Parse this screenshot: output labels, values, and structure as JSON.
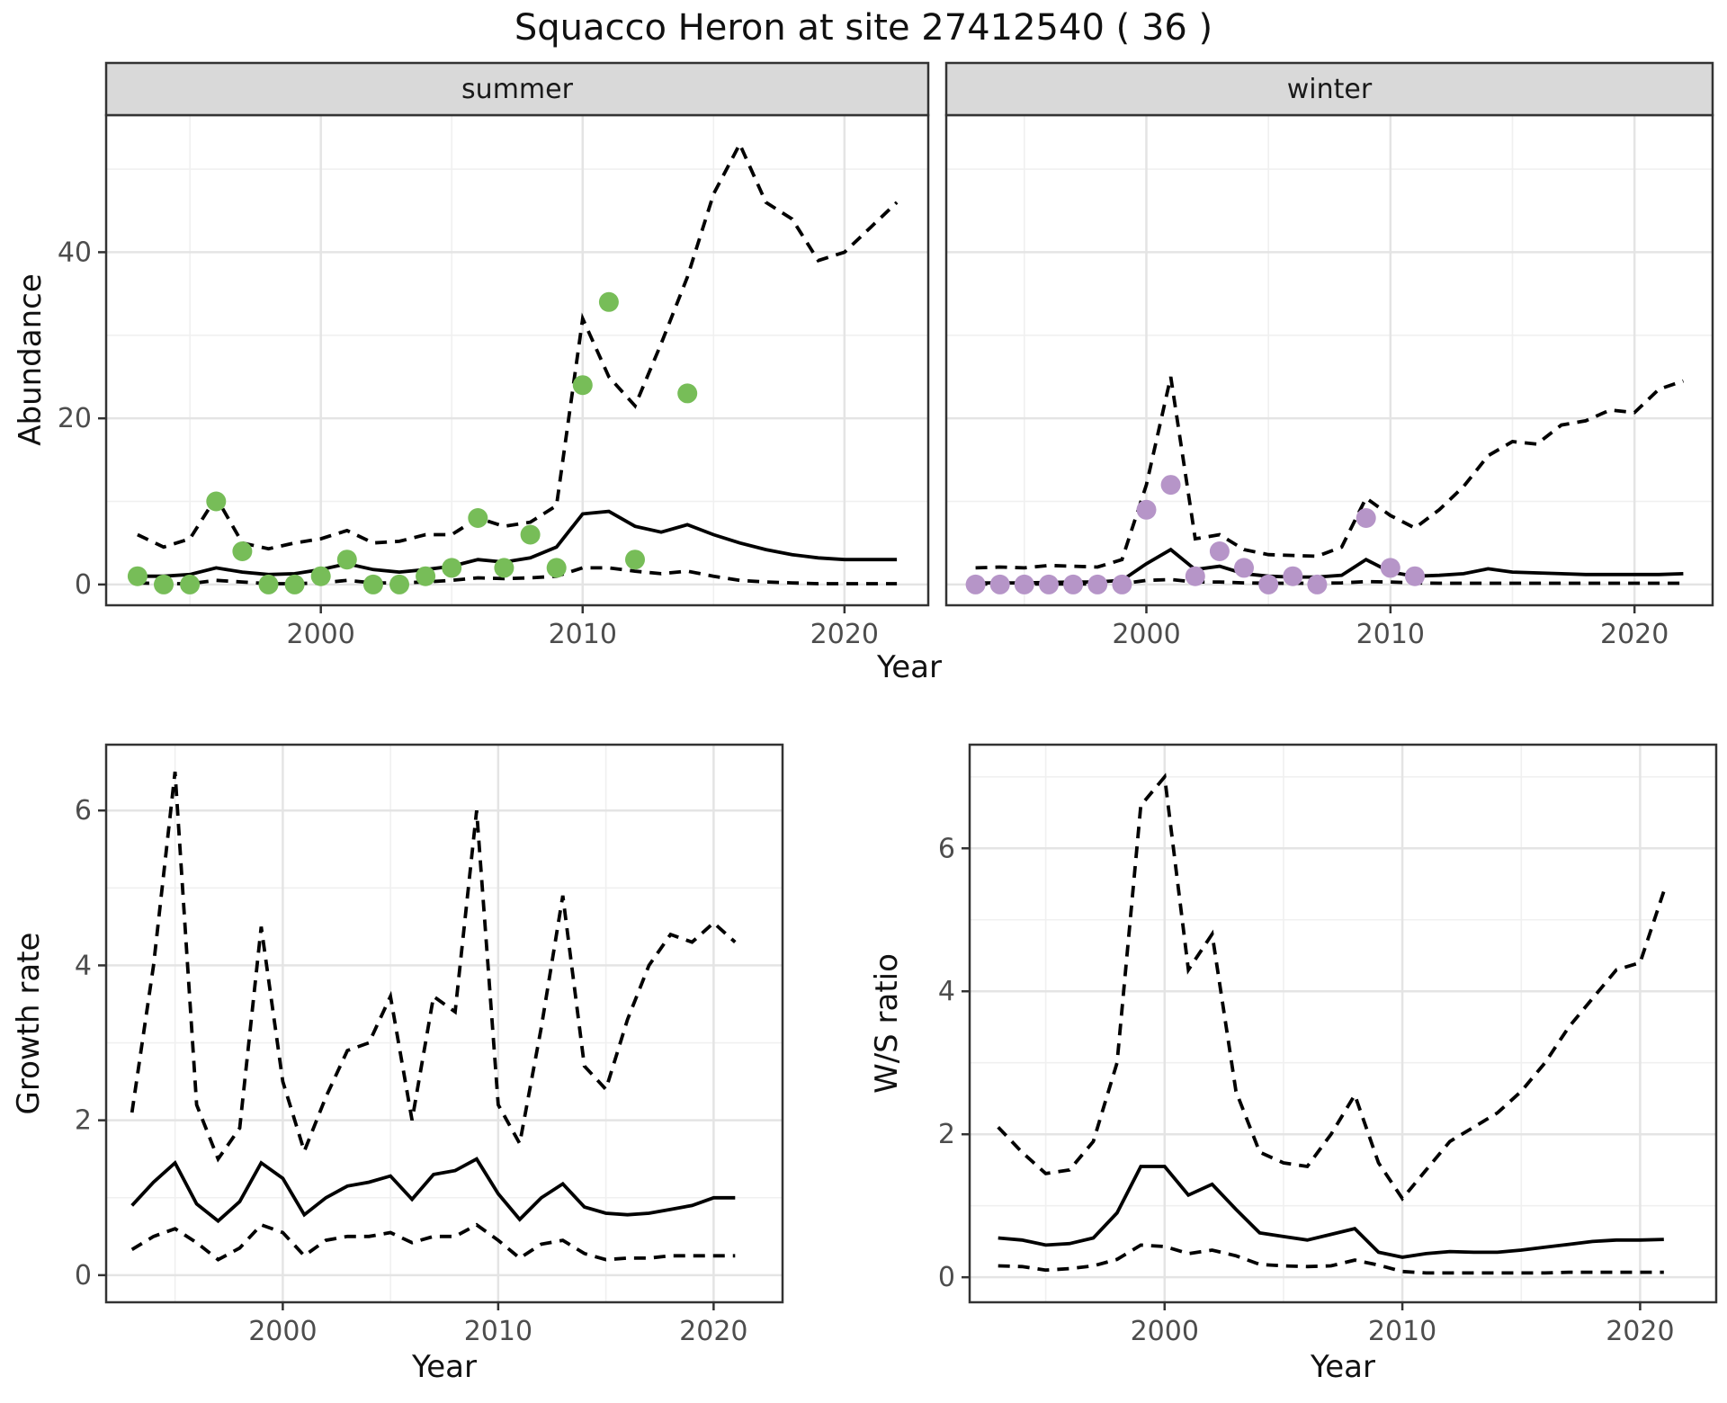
{
  "title": "Squacco Heron at site 27412540 ( 36 )",
  "colors": {
    "summer_point": "#77bd58",
    "winter_point": "#b695c8",
    "line": "#000000",
    "panel_bg": "#ffffff",
    "grid_major": "#e4e4e4",
    "grid_minor": "#f0f0f0",
    "panel_border": "#333333",
    "strip_bg": "#d9d9d9",
    "strip_text": "#1a1a1a",
    "tick_text": "#4d4d4d"
  },
  "chart_data": [
    {
      "id": "abundance_summer",
      "type": "line",
      "facet_label": "summer",
      "ylabel": "Abundance",
      "xlabel": "Year",
      "xlim": [
        1991.8,
        2023.2
      ],
      "ylim": [
        -2.5,
        56.5
      ],
      "xticks": [
        2000,
        2010,
        2020
      ],
      "yticks": [
        0,
        20,
        40
      ],
      "grid": true,
      "x": [
        1993,
        1994,
        1995,
        1996,
        1997,
        1998,
        1999,
        2000,
        2001,
        2002,
        2003,
        2004,
        2005,
        2006,
        2007,
        2008,
        2009,
        2010,
        2011,
        2012,
        2013,
        2014,
        2015,
        2016,
        2017,
        2018,
        2019,
        2020,
        2021,
        2022
      ],
      "series": [
        {
          "name": "median",
          "style": "solid",
          "values": [
            1.0,
            1.0,
            1.2,
            2.0,
            1.5,
            1.2,
            1.3,
            1.8,
            2.5,
            1.8,
            1.5,
            1.8,
            2.2,
            3.0,
            2.7,
            3.2,
            4.5,
            8.5,
            8.8,
            7.0,
            6.3,
            7.2,
            6.0,
            5.0,
            4.2,
            3.6,
            3.2,
            3.0,
            3.0,
            3.0
          ]
        },
        {
          "name": "upper_ci",
          "style": "dashed",
          "values": [
            6.0,
            4.5,
            5.5,
            10.5,
            5.0,
            4.3,
            5.0,
            5.5,
            6.5,
            5.0,
            5.2,
            6.0,
            6.0,
            8.0,
            7.0,
            7.5,
            9.5,
            32.0,
            25.0,
            21.5,
            29.0,
            37.0,
            47.0,
            53.0,
            46.0,
            44.0,
            39.0,
            40.0,
            43.0,
            46.0
          ]
        },
        {
          "name": "lower_ci",
          "style": "dashed",
          "values": [
            0.2,
            0.1,
            0.1,
            0.5,
            0.3,
            0.1,
            0.1,
            0.2,
            0.5,
            0.2,
            0.2,
            0.3,
            0.5,
            0.8,
            0.7,
            0.8,
            1.0,
            2.0,
            2.0,
            1.6,
            1.3,
            1.6,
            1.0,
            0.5,
            0.3,
            0.2,
            0.1,
            0.1,
            0.1,
            0.1
          ]
        }
      ],
      "points": {
        "name": "observed",
        "color_key": "summer_point",
        "x": [
          1993,
          1994,
          1995,
          1996,
          1997,
          1998,
          1999,
          2000,
          2001,
          2002,
          2003,
          2004,
          2005,
          2006,
          2007,
          2008,
          2009,
          2010,
          2011,
          2012,
          2014
        ],
        "y": [
          1,
          0,
          0,
          10,
          4,
          0,
          0,
          1,
          3,
          0,
          0,
          1,
          2,
          8,
          2,
          6,
          2,
          24,
          34,
          3,
          23
        ]
      }
    },
    {
      "id": "abundance_winter",
      "type": "line",
      "facet_label": "winter",
      "ylabel": "Abundance",
      "xlabel": "Year",
      "xlim": [
        1991.8,
        2023.2
      ],
      "ylim": [
        -2.5,
        56.5
      ],
      "xticks": [
        2000,
        2010,
        2020
      ],
      "yticks": [
        0,
        20,
        40
      ],
      "grid": true,
      "x": [
        1993,
        1994,
        1995,
        1996,
        1997,
        1998,
        1999,
        2000,
        2001,
        2002,
        2003,
        2004,
        2005,
        2006,
        2007,
        2008,
        2009,
        2010,
        2011,
        2012,
        2013,
        2014,
        2015,
        2016,
        2017,
        2018,
        2019,
        2020,
        2021,
        2022
      ],
      "series": [
        {
          "name": "median",
          "style": "solid",
          "values": [
            0.2,
            0.2,
            0.2,
            0.25,
            0.3,
            0.3,
            0.5,
            2.5,
            4.2,
            1.8,
            2.2,
            1.3,
            1.0,
            0.9,
            0.9,
            1.1,
            3.0,
            1.5,
            1.0,
            1.1,
            1.3,
            1.9,
            1.5,
            1.4,
            1.3,
            1.2,
            1.2,
            1.2,
            1.2,
            1.3
          ]
        },
        {
          "name": "upper_ci",
          "style": "dashed",
          "values": [
            2.0,
            2.1,
            2.0,
            2.3,
            2.2,
            2.1,
            3.0,
            12.0,
            25.0,
            5.5,
            6.0,
            4.2,
            3.6,
            3.5,
            3.4,
            4.5,
            10.4,
            8.3,
            6.8,
            9.0,
            11.8,
            15.5,
            17.2,
            16.9,
            19.2,
            19.7,
            21.0,
            20.7,
            23.5,
            24.5
          ]
        },
        {
          "name": "lower_ci",
          "style": "dashed",
          "values": [
            0.05,
            0.05,
            0.05,
            0.05,
            0.05,
            0.05,
            0.1,
            0.5,
            0.6,
            0.3,
            0.3,
            0.2,
            0.15,
            0.15,
            0.15,
            0.2,
            0.35,
            0.3,
            0.2,
            0.15,
            0.15,
            0.15,
            0.15,
            0.15,
            0.15,
            0.15,
            0.15,
            0.15,
            0.15,
            0.15
          ]
        }
      ],
      "points": {
        "name": "observed",
        "color_key": "winter_point",
        "x": [
          1993,
          1994,
          1995,
          1996,
          1997,
          1998,
          1999,
          2000,
          2001,
          2002,
          2003,
          2004,
          2005,
          2006,
          2007,
          2009,
          2010,
          2011
        ],
        "y": [
          0,
          0,
          0,
          0,
          0,
          0,
          0,
          9,
          12,
          1,
          4,
          2,
          0,
          1,
          0,
          8,
          2,
          1
        ]
      }
    },
    {
      "id": "growth_rate",
      "type": "line",
      "facet_label": null,
      "ylabel": "Growth rate",
      "xlabel": "Year",
      "xlim": [
        1991.8,
        2023.2
      ],
      "ylim": [
        -0.35,
        6.85
      ],
      "xticks": [
        2000,
        2010,
        2020
      ],
      "yticks": [
        0,
        2,
        4,
        6
      ],
      "grid": true,
      "x": [
        1993,
        1994,
        1995,
        1996,
        1997,
        1998,
        1999,
        2000,
        2001,
        2002,
        2003,
        2004,
        2005,
        2006,
        2007,
        2008,
        2009,
        2010,
        2011,
        2012,
        2013,
        2014,
        2015,
        2016,
        2017,
        2018,
        2019,
        2020,
        2021
      ],
      "series": [
        {
          "name": "median",
          "style": "solid",
          "values": [
            0.9,
            1.2,
            1.45,
            0.92,
            0.7,
            0.95,
            1.45,
            1.25,
            0.78,
            1.0,
            1.15,
            1.2,
            1.28,
            0.98,
            1.3,
            1.35,
            1.5,
            1.05,
            0.72,
            1.0,
            1.18,
            0.88,
            0.8,
            0.78,
            0.8,
            0.85,
            0.9,
            1.0,
            1.0
          ]
        },
        {
          "name": "upper_ci",
          "style": "dashed",
          "values": [
            2.1,
            4.0,
            6.5,
            2.2,
            1.5,
            1.9,
            4.5,
            2.5,
            1.6,
            2.3,
            2.9,
            3.0,
            3.6,
            2.0,
            3.6,
            3.4,
            6.0,
            2.2,
            1.7,
            3.2,
            4.9,
            2.7,
            2.4,
            3.3,
            4.0,
            4.4,
            4.3,
            4.55,
            4.3
          ]
        },
        {
          "name": "lower_ci",
          "style": "dashed",
          "values": [
            0.33,
            0.5,
            0.6,
            0.42,
            0.2,
            0.35,
            0.65,
            0.55,
            0.25,
            0.45,
            0.5,
            0.5,
            0.55,
            0.42,
            0.5,
            0.5,
            0.65,
            0.45,
            0.22,
            0.4,
            0.45,
            0.28,
            0.2,
            0.22,
            0.22,
            0.25,
            0.25,
            0.25,
            0.25
          ]
        }
      ],
      "points": null
    },
    {
      "id": "ws_ratio",
      "type": "line",
      "facet_label": null,
      "ylabel": "W/S ratio",
      "xlabel": "Year",
      "xlim": [
        1991.8,
        2023.2
      ],
      "ylim": [
        -0.35,
        7.45
      ],
      "xticks": [
        2000,
        2010,
        2020
      ],
      "yticks": [
        0,
        2,
        4,
        6
      ],
      "grid": true,
      "x": [
        1993,
        1994,
        1995,
        1996,
        1997,
        1998,
        1999,
        2000,
        2001,
        2002,
        2003,
        2004,
        2005,
        2006,
        2007,
        2008,
        2009,
        2010,
        2011,
        2012,
        2013,
        2014,
        2015,
        2016,
        2017,
        2018,
        2019,
        2020,
        2021
      ],
      "series": [
        {
          "name": "median",
          "style": "solid",
          "values": [
            0.55,
            0.52,
            0.45,
            0.47,
            0.55,
            0.9,
            1.55,
            1.55,
            1.15,
            1.3,
            0.95,
            0.62,
            0.57,
            0.52,
            0.6,
            0.68,
            0.35,
            0.28,
            0.33,
            0.36,
            0.35,
            0.35,
            0.38,
            0.42,
            0.46,
            0.5,
            0.52,
            0.52,
            0.53
          ]
        },
        {
          "name": "upper_ci",
          "style": "dashed",
          "values": [
            2.1,
            1.75,
            1.45,
            1.5,
            1.9,
            3.0,
            6.6,
            7.0,
            4.3,
            4.8,
            2.6,
            1.75,
            1.6,
            1.55,
            2.0,
            2.55,
            1.6,
            1.1,
            1.5,
            1.9,
            2.1,
            2.3,
            2.6,
            3.0,
            3.5,
            3.9,
            4.3,
            4.4,
            5.4
          ]
        },
        {
          "name": "lower_ci",
          "style": "dashed",
          "values": [
            0.16,
            0.15,
            0.1,
            0.12,
            0.16,
            0.25,
            0.45,
            0.43,
            0.33,
            0.38,
            0.3,
            0.18,
            0.16,
            0.15,
            0.16,
            0.24,
            0.17,
            0.08,
            0.06,
            0.06,
            0.06,
            0.06,
            0.06,
            0.06,
            0.07,
            0.07,
            0.07,
            0.07,
            0.07
          ]
        }
      ],
      "points": null
    }
  ]
}
